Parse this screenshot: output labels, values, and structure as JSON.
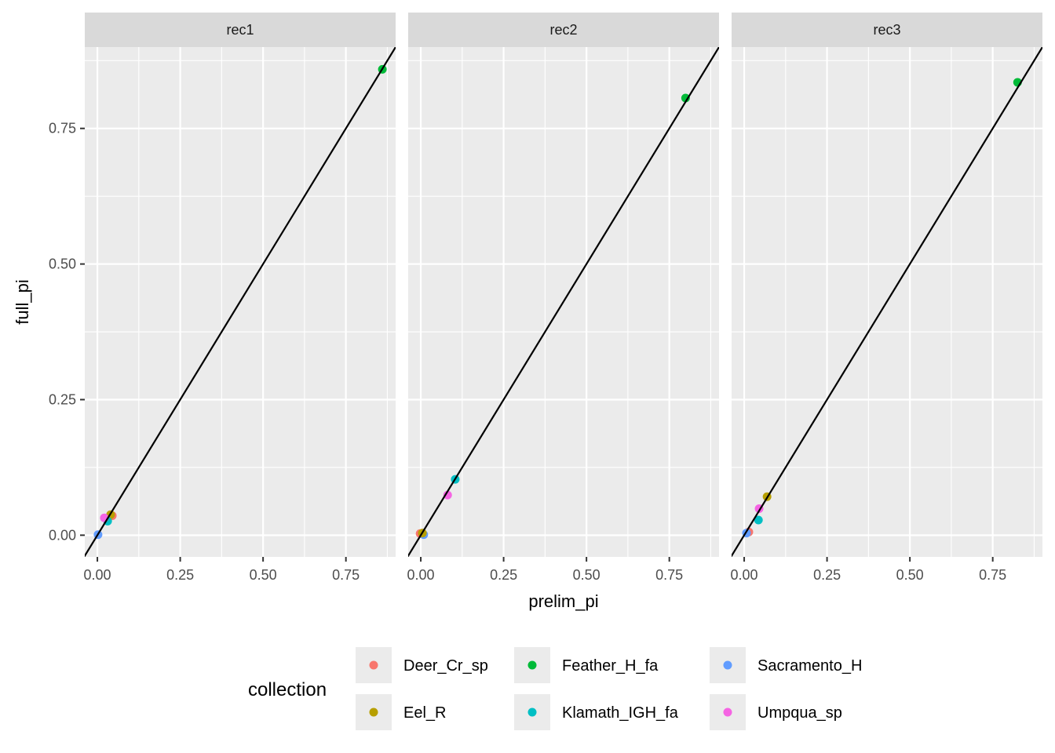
{
  "chart_data": {
    "type": "scatter",
    "title": "",
    "xlabel": "prelim_pi",
    "ylabel": "full_pi",
    "xlim": [
      -0.038,
      0.9
    ],
    "ylim": [
      -0.04,
      0.9
    ],
    "x_ticks": [
      0.0,
      0.25,
      0.5,
      0.75
    ],
    "x_tick_labels": [
      "0.00",
      "0.25",
      "0.50",
      "0.75"
    ],
    "y_ticks": [
      0.0,
      0.25,
      0.5,
      0.75
    ],
    "y_tick_labels": [
      "0.00",
      "0.25",
      "0.50",
      "0.75"
    ],
    "grid": true,
    "reference_line": {
      "slope": 1,
      "intercept": 0
    },
    "facet_variable": "",
    "facets": [
      {
        "label": "rec1",
        "points": [
          {
            "collection": "Deer_Cr_sp",
            "x": 0.045,
            "y": 0.036
          },
          {
            "collection": "Eel_R",
            "x": 0.04,
            "y": 0.038
          },
          {
            "collection": "Klamath_IGH_fa",
            "x": 0.031,
            "y": 0.026
          },
          {
            "collection": "Umpqua_sp",
            "x": 0.021,
            "y": 0.032
          },
          {
            "collection": "Sacramento_H",
            "x": 0.002,
            "y": 0.001
          },
          {
            "collection": "Feather_H_fa",
            "x": 0.86,
            "y": 0.859
          }
        ]
      },
      {
        "label": "rec2",
        "points": [
          {
            "collection": "Deer_Cr_sp",
            "x": -0.002,
            "y": 0.003
          },
          {
            "collection": "Sacramento_H",
            "x": 0.009,
            "y": 0.001
          },
          {
            "collection": "Eel_R",
            "x": 0.005,
            "y": 0.004
          },
          {
            "collection": "Umpqua_sp",
            "x": 0.081,
            "y": 0.074
          },
          {
            "collection": "Klamath_IGH_fa",
            "x": 0.104,
            "y": 0.103
          },
          {
            "collection": "Feather_H_fa",
            "x": 0.799,
            "y": 0.806
          }
        ]
      },
      {
        "label": "rec3",
        "points": [
          {
            "collection": "Deer_Cr_sp",
            "x": 0.014,
            "y": 0.006
          },
          {
            "collection": "Sacramento_H",
            "x": 0.007,
            "y": 0.004
          },
          {
            "collection": "Klamath_IGH_fa",
            "x": 0.043,
            "y": 0.028
          },
          {
            "collection": "Umpqua_sp",
            "x": 0.045,
            "y": 0.049
          },
          {
            "collection": "Eel_R",
            "x": 0.069,
            "y": 0.071
          },
          {
            "collection": "Feather_H_fa",
            "x": 0.825,
            "y": 0.835
          }
        ]
      }
    ],
    "legend": {
      "title": "collection",
      "position": "bottom",
      "entries": [
        {
          "label": "Deer_Cr_sp",
          "color": "#F8766D"
        },
        {
          "label": "Eel_R",
          "color": "#B79F00"
        },
        {
          "label": "Feather_H_fa",
          "color": "#00BA38"
        },
        {
          "label": "Klamath_IGH_fa",
          "color": "#00BFC4"
        },
        {
          "label": "Sacramento_H",
          "color": "#619CFF"
        },
        {
          "label": "Umpqua_sp",
          "color": "#F564E3"
        }
      ]
    },
    "colors": {
      "panel_background": "#EBEBEB",
      "strip_background": "#D9D9D9",
      "grid": "#FFFFFF",
      "line": "#000000"
    }
  }
}
